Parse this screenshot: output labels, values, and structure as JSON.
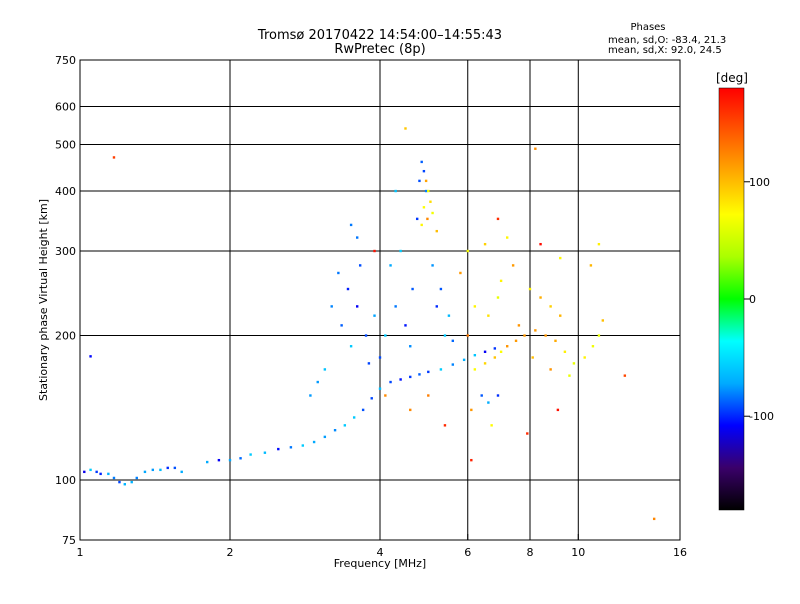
{
  "chart_data": {
    "type": "scatter",
    "title": "Tromsø 20170422 14:54:00–14:55:43",
    "subtitle": "RwPretec (8p)",
    "xlabel": "Frequency [MHz]",
    "ylabel": "Stationary phase Virtual Height [km]",
    "x_scale": "log",
    "y_scale": "log",
    "xlim": [
      1,
      16
    ],
    "ylim": [
      75,
      750
    ],
    "x_ticks": [
      1,
      2,
      4,
      6,
      8,
      10,
      16
    ],
    "x_tick_labels": [
      "1",
      "2",
      "4",
      "6",
      "8",
      "10",
      "16"
    ],
    "y_ticks": [
      75,
      100,
      200,
      300,
      400,
      500,
      600,
      750
    ],
    "y_tick_labels": [
      "75",
      "100",
      "200",
      "300",
      "400",
      "500",
      "600",
      "750"
    ],
    "grid": true,
    "phase_stats": {
      "heading": "Phases",
      "line_o": "mean, sd,O: -83.4, 21.3",
      "line_x": "mean, sd,X:  92.0, 24.5"
    },
    "colorbar": {
      "label": "[deg]",
      "range": [
        -180,
        180
      ],
      "tick_values": [
        -100,
        0,
        100
      ],
      "tick_labels": [
        "-100",
        "0",
        "100"
      ],
      "colormap": "rainbow",
      "stops": [
        "#000000",
        "#3a006a",
        "#0000ff",
        "#00aaff",
        "#00ffff",
        "#00ff00",
        "#aaff00",
        "#ffff00",
        "#ffaa00",
        "#ff5500",
        "#ff0000"
      ]
    },
    "series": [
      {
        "description_kind": "O-mode cluster",
        "phase_mean": -83.4,
        "points": [
          [
            1.02,
            104
          ],
          [
            1.05,
            105
          ],
          [
            1.08,
            104
          ],
          [
            1.1,
            103
          ],
          [
            1.14,
            103
          ],
          [
            1.17,
            101
          ],
          [
            1.2,
            99
          ],
          [
            1.23,
            98
          ],
          [
            1.27,
            99
          ],
          [
            1.3,
            101
          ],
          [
            1.35,
            104
          ],
          [
            1.4,
            105
          ],
          [
            1.45,
            105
          ],
          [
            1.5,
            106
          ],
          [
            1.55,
            106
          ],
          [
            1.6,
            104
          ],
          [
            1.8,
            109
          ],
          [
            1.9,
            110
          ],
          [
            2.0,
            110
          ],
          [
            2.1,
            111
          ],
          [
            2.2,
            113
          ],
          [
            2.35,
            114
          ],
          [
            2.5,
            116
          ],
          [
            2.65,
            117
          ],
          [
            2.8,
            118
          ],
          [
            2.95,
            120
          ],
          [
            3.1,
            123
          ],
          [
            3.25,
            127
          ],
          [
            3.4,
            130
          ],
          [
            3.55,
            135
          ],
          [
            3.7,
            140
          ],
          [
            3.85,
            148
          ],
          [
            4.0,
            155
          ],
          [
            4.2,
            160
          ],
          [
            4.4,
            162
          ],
          [
            4.6,
            164
          ],
          [
            4.8,
            166
          ],
          [
            5.0,
            168
          ],
          [
            5.3,
            170
          ],
          [
            5.6,
            174
          ],
          [
            5.9,
            178
          ],
          [
            6.2,
            182
          ],
          [
            6.5,
            185
          ],
          [
            6.8,
            188
          ],
          [
            3.2,
            230
          ],
          [
            3.3,
            270
          ],
          [
            3.35,
            210
          ],
          [
            3.45,
            250
          ],
          [
            3.5,
            190
          ],
          [
            3.6,
            230
          ],
          [
            3.65,
            280
          ],
          [
            3.75,
            200
          ],
          [
            3.9,
            220
          ],
          [
            4.1,
            200
          ],
          [
            4.3,
            230
          ],
          [
            4.5,
            210
          ],
          [
            4.65,
            250
          ],
          [
            4.75,
            350
          ],
          [
            4.8,
            420
          ],
          [
            4.85,
            460
          ],
          [
            4.9,
            440
          ],
          [
            4.95,
            400
          ],
          [
            5.1,
            280
          ],
          [
            5.2,
            230
          ],
          [
            5.4,
            200
          ],
          [
            5.6,
            195
          ],
          [
            3.1,
            170
          ],
          [
            3.0,
            160
          ],
          [
            2.9,
            150
          ],
          [
            3.5,
            340
          ],
          [
            3.6,
            320
          ],
          [
            4.2,
            280
          ],
          [
            4.4,
            300
          ],
          [
            6.4,
            150
          ],
          [
            6.6,
            145
          ],
          [
            6.9,
            150
          ],
          [
            4.6,
            190
          ],
          [
            4.0,
            180
          ],
          [
            3.8,
            175
          ],
          [
            5.3,
            250
          ],
          [
            5.5,
            220
          ],
          [
            4.3,
            400
          ],
          [
            1.05,
            181
          ]
        ]
      },
      {
        "description_kind": "X-mode cluster",
        "phase_mean": 92.0,
        "points": [
          [
            4.95,
            420
          ],
          [
            5.0,
            400
          ],
          [
            5.05,
            380
          ],
          [
            4.9,
            370
          ],
          [
            5.1,
            360
          ],
          [
            4.98,
            350
          ],
          [
            4.85,
            340
          ],
          [
            5.2,
            330
          ],
          [
            6.2,
            170
          ],
          [
            6.5,
            175
          ],
          [
            6.8,
            180
          ],
          [
            7.0,
            185
          ],
          [
            7.2,
            190
          ],
          [
            7.5,
            195
          ],
          [
            7.8,
            200
          ],
          [
            8.2,
            205
          ],
          [
            8.6,
            200
          ],
          [
            9.0,
            195
          ],
          [
            9.4,
            185
          ],
          [
            9.8,
            175
          ],
          [
            10.3,
            180
          ],
          [
            10.7,
            190
          ],
          [
            11.0,
            200
          ],
          [
            11.2,
            215
          ],
          [
            8.0,
            250
          ],
          [
            8.4,
            240
          ],
          [
            8.8,
            230
          ],
          [
            9.2,
            220
          ],
          [
            7.0,
            260
          ],
          [
            7.4,
            280
          ],
          [
            6.2,
            230
          ],
          [
            6.6,
            220
          ],
          [
            5.8,
            270
          ],
          [
            6.0,
            300
          ],
          [
            6.5,
            310
          ],
          [
            6.9,
            240
          ],
          [
            7.6,
            210
          ],
          [
            8.1,
            180
          ],
          [
            8.8,
            170
          ],
          [
            9.6,
            165
          ],
          [
            6.1,
            140
          ],
          [
            6.7,
            130
          ],
          [
            8.2,
            490
          ],
          [
            4.5,
            540
          ],
          [
            10.6,
            280
          ],
          [
            11.0,
            310
          ],
          [
            7.2,
            320
          ],
          [
            9.2,
            290
          ]
        ]
      },
      {
        "description_kind": "scattered",
        "phase_mean": 150,
        "points": [
          [
            1.17,
            470
          ],
          [
            14.2,
            83
          ],
          [
            6.1,
            110
          ],
          [
            5.4,
            130
          ],
          [
            7.9,
            125
          ],
          [
            12.4,
            165
          ],
          [
            4.1,
            150
          ],
          [
            5.0,
            150
          ],
          [
            8.4,
            310
          ],
          [
            6.0,
            200
          ],
          [
            6.9,
            350
          ],
          [
            9.1,
            140
          ],
          [
            4.6,
            140
          ],
          [
            3.9,
            300
          ]
        ]
      }
    ]
  }
}
